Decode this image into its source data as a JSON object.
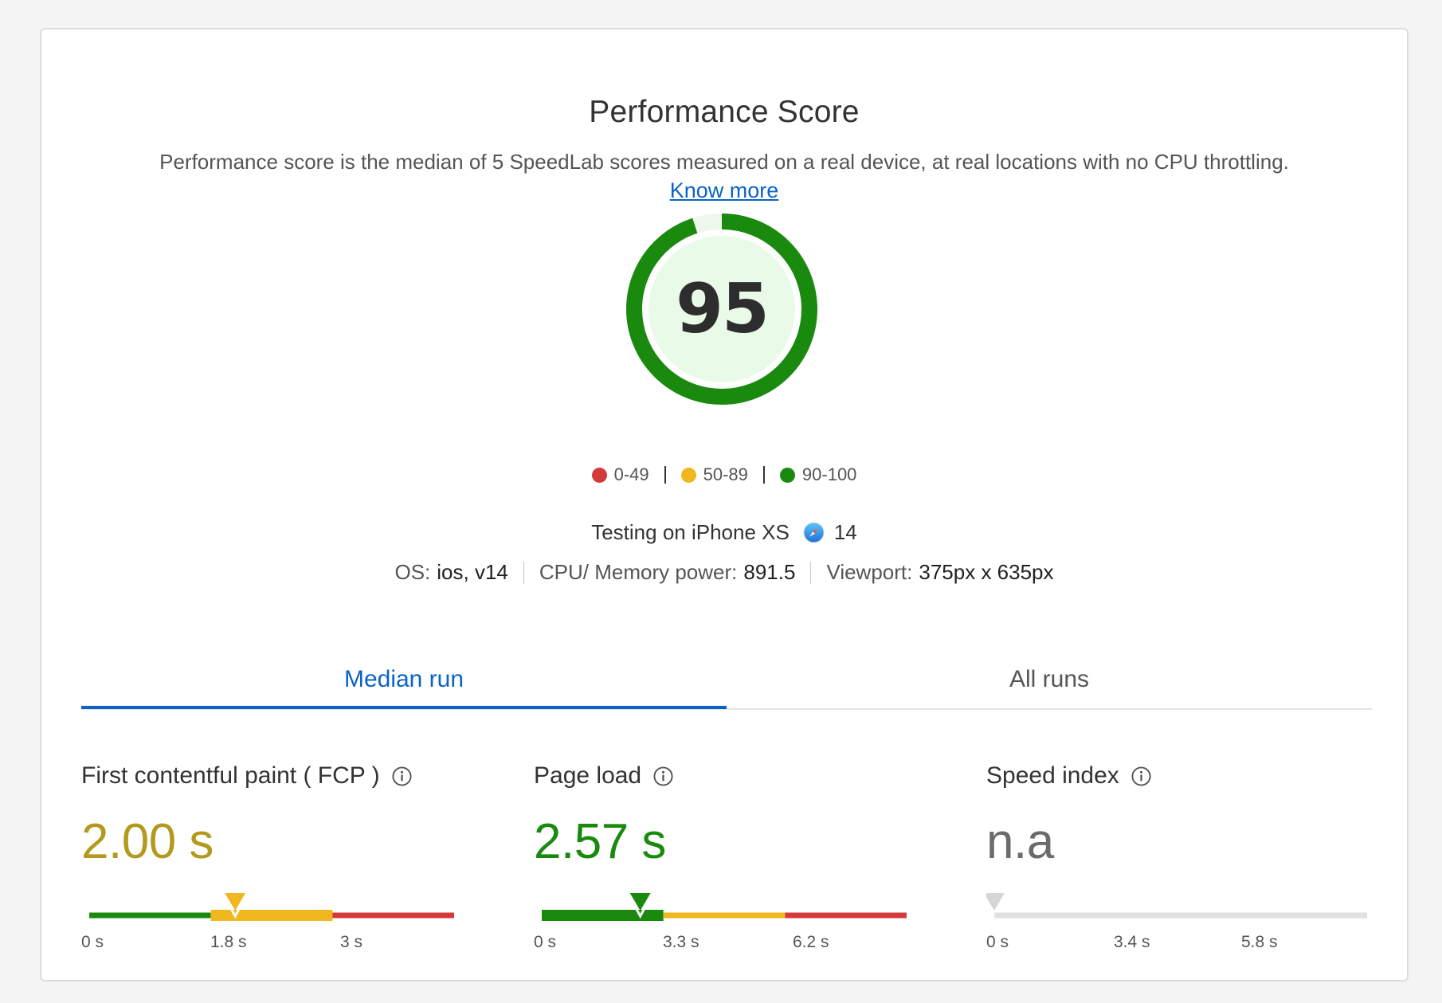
{
  "header": {
    "title": "Performance Score",
    "description": "Performance score is the median of 5 SpeedLab scores measured on a real device, at real locations with no CPU throttling.",
    "know_more": "Know more"
  },
  "score": {
    "value": "95",
    "fraction": 0.95,
    "color": "#1a8a0f",
    "fill": "#e9fbe8"
  },
  "legend": [
    {
      "range": "0-49",
      "color": "#d53a3a"
    },
    {
      "range": "50-89",
      "color": "#f0b81e"
    },
    {
      "range": "90-100",
      "color": "#1a8a0f"
    }
  ],
  "device": {
    "label": "Testing on iPhone XS",
    "browser_icon": "safari-icon",
    "browser_version": "14"
  },
  "specs": {
    "os_label": "OS:",
    "os_value": "ios, v14",
    "cpu_label": "CPU/ Memory power:",
    "cpu_value": "891.5",
    "viewport_label": "Viewport:",
    "viewport_value": "375px x 635px"
  },
  "tabs": [
    {
      "label": "Median run",
      "active": true
    },
    {
      "label": "All runs",
      "active": false
    }
  ],
  "metrics": [
    {
      "name": "First contentful paint ( FCP )",
      "value": "2.00 s",
      "value_color": "#b39a1f",
      "segments": [
        "#1a8a0f",
        "#f0b81e",
        "#d53a3a"
      ],
      "active_segment": 1,
      "marker_color": "#f0b81e",
      "marker_position": 0.4,
      "ticks": [
        "0 s",
        "1.8 s",
        "3 s"
      ]
    },
    {
      "name": "Page load",
      "value": "2.57 s",
      "value_color": "#1a8a0f",
      "segments": [
        "#1a8a0f",
        "#f0b81e",
        "#d53a3a"
      ],
      "active_segment": 0,
      "marker_color": "#1a8a0f",
      "marker_position": 0.27,
      "ticks": [
        "0 s",
        "3.3 s",
        "6.2 s"
      ]
    },
    {
      "name": "Speed index",
      "value": "n.a",
      "value_color": "#6b6b6b",
      "segments": [
        "#e0e0e0",
        "#e0e0e0",
        "#e0e0e0"
      ],
      "active_segment": -1,
      "marker_color": "#d6d6d6",
      "marker_position": 0.0,
      "ticks": [
        "0 s",
        "3.4 s",
        "5.8 s"
      ]
    }
  ],
  "icons": {
    "info": "info-circle-icon"
  }
}
